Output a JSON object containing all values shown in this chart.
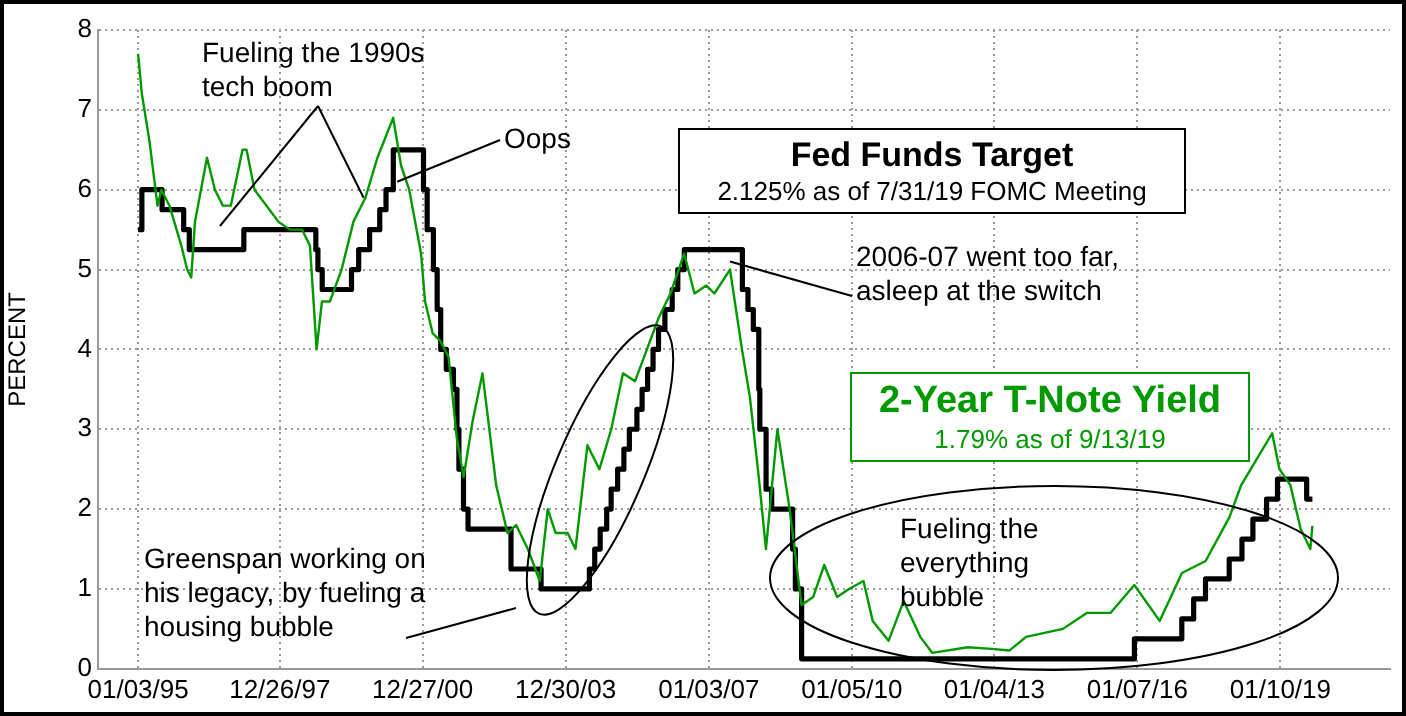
{
  "chart_data": {
    "type": "line",
    "ylabel": "PERCENT",
    "xlim": [
      "1994-03-01",
      "2021-05-01"
    ],
    "xticks": [
      {
        "value": "1995-01-03",
        "label": "01/03/95"
      },
      {
        "value": "1997-12-26",
        "label": "12/26/97"
      },
      {
        "value": "2000-12-27",
        "label": "12/27/00"
      },
      {
        "value": "2003-12-30",
        "label": "12/30/03"
      },
      {
        "value": "2007-01-03",
        "label": "01/03/07"
      },
      {
        "value": "2010-01-05",
        "label": "01/05/10"
      },
      {
        "value": "2013-01-04",
        "label": "01/04/13"
      },
      {
        "value": "2016-01-07",
        "label": "01/07/16"
      },
      {
        "value": "2019-01-10",
        "label": "01/10/19"
      }
    ],
    "ylim": [
      0,
      8
    ],
    "yticks": [
      0,
      1,
      2,
      3,
      4,
      5,
      6,
      7,
      8
    ],
    "grid": true,
    "legend": false,
    "annotations": [
      {
        "text": "Fueling the 1990s tech boom",
        "x": "1999-10-01",
        "y": 5.9
      },
      {
        "text": "Oops",
        "x": "2000-06-15",
        "y": 6.1
      },
      "2.125% as of 7/31/19 FOMC Meeting",
      {
        "text": "2006-07 went too far, asleep at the switch",
        "x": "2007-06-15",
        "y": 5.1
      },
      "1.79% as of 9/13/19",
      "Greenspan working on his legacy, by fueling a housing bubble",
      "Fueling the everything bubble"
    ],
    "series": [
      {
        "name": "Fed Funds Target",
        "type": "step",
        "color": "#000000",
        "x": [
          "1995-01-03",
          "1995-02-01",
          "1995-07-06",
          "1995-12-19",
          "1996-01-31",
          "1997-03-25",
          "1998-09-29",
          "1998-10-15",
          "1998-11-17",
          "1999-06-30",
          "1999-08-24",
          "1999-11-16",
          "2000-02-02",
          "2000-03-21",
          "2000-05-16",
          "2001-01-03",
          "2001-01-31",
          "2001-03-20",
          "2001-04-18",
          "2001-05-15",
          "2001-06-27",
          "2001-08-21",
          "2001-09-17",
          "2001-10-02",
          "2001-11-06",
          "2001-12-11",
          "2002-11-06",
          "2003-06-25",
          "2004-06-30",
          "2004-08-10",
          "2004-09-21",
          "2004-11-10",
          "2004-12-14",
          "2005-02-02",
          "2005-03-22",
          "2005-05-03",
          "2005-06-30",
          "2005-08-09",
          "2005-09-20",
          "2005-11-01",
          "2005-12-13",
          "2006-01-31",
          "2006-03-28",
          "2006-05-10",
          "2006-06-29",
          "2007-09-18",
          "2007-10-31",
          "2007-12-11",
          "2008-01-22",
          "2008-01-30",
          "2008-03-18",
          "2008-04-30",
          "2008-10-08",
          "2008-10-29",
          "2008-12-16",
          "2015-12-16",
          "2016-12-14",
          "2017-03-15",
          "2017-06-14",
          "2017-12-13",
          "2018-03-21",
          "2018-06-13",
          "2018-09-26",
          "2018-12-19",
          "2019-07-31",
          "2019-09-13"
        ],
        "values": [
          5.5,
          6,
          5.75,
          5.5,
          5.25,
          5.5,
          5.25,
          5,
          4.75,
          5,
          5.25,
          5.5,
          5.75,
          6,
          6.5,
          6,
          5.5,
          5,
          4.5,
          4,
          3.75,
          3.5,
          3,
          2.5,
          2,
          1.75,
          1.25,
          1,
          1.25,
          1.5,
          1.75,
          2,
          2.25,
          2.5,
          2.75,
          3,
          3.25,
          3.5,
          3.75,
          4,
          4.25,
          4.5,
          4.75,
          5,
          5.25,
          4.75,
          4.5,
          4.25,
          3.5,
          3,
          2.25,
          2,
          1.5,
          1,
          0.125,
          0.375,
          0.625,
          0.875,
          1.125,
          1.375,
          1.625,
          1.875,
          2.125,
          2.375,
          2.125,
          2.125
        ]
      },
      {
        "name": "2-Year T-Note Yield",
        "type": "line",
        "color": "#009900",
        "x": [
          "1995-01-03",
          "1995-02-01",
          "1995-04-01",
          "1995-06-01",
          "1995-07-01",
          "1995-09-01",
          "1995-12-01",
          "1996-01-15",
          "1996-02-15",
          "1996-03-15",
          "1996-06-15",
          "1996-08-15",
          "1996-10-15",
          "1996-12-15",
          "1997-03-15",
          "1997-04-15",
          "1997-06-15",
          "1997-09-15",
          "1997-12-15",
          "1998-03-15",
          "1998-06-15",
          "1998-08-15",
          "1998-10-05",
          "1998-11-15",
          "1999-01-15",
          "1999-04-15",
          "1999-07-15",
          "1999-10-15",
          "2000-01-15",
          "2000-05-15",
          "2000-07-15",
          "2000-09-15",
          "2000-12-15",
          "2001-01-15",
          "2001-03-15",
          "2001-05-15",
          "2001-07-15",
          "2001-09-15",
          "2001-11-07",
          "2002-01-15",
          "2002-04-01",
          "2002-07-15",
          "2002-10-10",
          "2002-12-15",
          "2003-03-15",
          "2003-06-15",
          "2003-08-15",
          "2003-10-15",
          "2004-01-15",
          "2004-03-15",
          "2004-06-15",
          "2004-09-15",
          "2004-12-15",
          "2005-03-15",
          "2005-06-15",
          "2005-09-15",
          "2005-12-15",
          "2006-03-15",
          "2006-06-28",
          "2006-09-15",
          "2006-12-15",
          "2007-02-15",
          "2007-06-15",
          "2007-09-15",
          "2007-11-15",
          "2008-01-22",
          "2008-03-17",
          "2008-06-13",
          "2008-09-15",
          "2008-12-15",
          "2009-03-15",
          "2009-06-08",
          "2009-09-15",
          "2009-12-15",
          "2010-04-05",
          "2010-06-15",
          "2010-10-15",
          "2011-02-08",
          "2011-06-15",
          "2011-09-15",
          "2012-06-15",
          "2012-12-15",
          "2013-05-01",
          "2013-09-05",
          "2014-06-15",
          "2014-12-15",
          "2015-06-15",
          "2015-12-15",
          "2016-06-27",
          "2016-12-15",
          "2017-06-15",
          "2017-12-15",
          "2018-03-15",
          "2018-06-15",
          "2018-11-08",
          "2019-01-03",
          "2019-03-28",
          "2019-06-15",
          "2019-08-28",
          "2019-09-13"
        ],
        "values": [
          7.7,
          7.2,
          6.6,
          5.8,
          6,
          5.8,
          5.3,
          5,
          4.9,
          5.6,
          6.4,
          6,
          5.8,
          5.8,
          6.5,
          6.5,
          6,
          5.8,
          5.6,
          5.5,
          5.5,
          5.3,
          4,
          4.6,
          4.6,
          5,
          5.6,
          5.9,
          6.4,
          6.9,
          6.3,
          6,
          5.2,
          4.6,
          4.2,
          4.1,
          3.9,
          2.9,
          2.4,
          3.1,
          3.7,
          2.3,
          1.7,
          1.8,
          1.5,
          1.1,
          2,
          1.7,
          1.7,
          1.5,
          2.8,
          2.5,
          3,
          3.7,
          3.6,
          4,
          4.4,
          4.7,
          5.2,
          4.7,
          4.8,
          4.7,
          5,
          4,
          3.4,
          2.4,
          1.5,
          3,
          2,
          0.8,
          0.9,
          1.3,
          0.9,
          1,
          1.1,
          0.6,
          0.35,
          0.85,
          0.4,
          0.2,
          0.27,
          0.25,
          0.23,
          0.4,
          0.5,
          0.7,
          0.7,
          1.05,
          0.6,
          1.2,
          1.35,
          1.9,
          2.3,
          2.55,
          2.95,
          2.5,
          2.3,
          1.75,
          1.5,
          1.79
        ]
      }
    ]
  }
}
